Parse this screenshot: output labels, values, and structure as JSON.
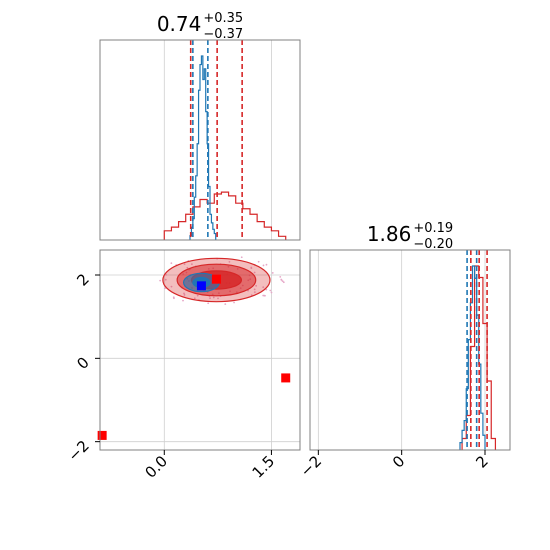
{
  "chart_data": [
    {
      "type": "histogram",
      "panel": "top-left marginal",
      "title": {
        "value": "0.74",
        "plus": "+0.35",
        "minus": "−0.37"
      },
      "xlim": [
        -0.9,
        1.9
      ],
      "grid": true,
      "series": [
        {
          "color": "#d62728",
          "edges": [
            0.0,
            0.1,
            0.2,
            0.3,
            0.4,
            0.5,
            0.6,
            0.7,
            0.8,
            0.9,
            1.0,
            1.1,
            1.2,
            1.3,
            1.4,
            1.5,
            1.6,
            1.7
          ],
          "counts": [
            0.05,
            0.07,
            0.1,
            0.14,
            0.18,
            0.22,
            0.2,
            0.25,
            0.26,
            0.24,
            0.2,
            0.17,
            0.14,
            0.1,
            0.07,
            0.05,
            0.02
          ],
          "quantile_lines": [
            0.37,
            0.74,
            1.09
          ]
        },
        {
          "color": "#1f77b4",
          "edges": [
            0.36,
            0.38,
            0.4,
            0.42,
            0.44,
            0.46,
            0.48,
            0.5,
            0.52,
            0.54,
            0.56,
            0.58,
            0.6,
            0.62,
            0.64,
            0.66,
            0.68,
            0.7,
            0.72
          ],
          "counts": [
            0.02,
            0.06,
            0.1,
            0.2,
            0.3,
            0.45,
            0.7,
            0.82,
            0.86,
            0.75,
            0.8,
            0.6,
            0.45,
            0.25,
            0.12,
            0.08,
            0.05,
            0.03
          ],
          "quantile_lines": [
            0.4,
            0.61
          ]
        }
      ]
    },
    {
      "type": "histogram",
      "panel": "bottom-right marginal",
      "title": {
        "value": "1.86",
        "plus": "+0.19",
        "minus": "−0.20"
      },
      "xlim": [
        -2.2,
        2.6
      ],
      "xticks": [
        "−2",
        "0",
        "2"
      ],
      "grid": true,
      "series": [
        {
          "color": "#d62728",
          "edges": [
            1.45,
            1.55,
            1.65,
            1.75,
            1.85,
            1.95,
            2.05,
            2.15,
            2.25
          ],
          "counts": [
            0.05,
            0.15,
            0.45,
            0.8,
            0.75,
            0.55,
            0.3,
            0.05
          ],
          "quantile_lines": [
            1.66,
            1.86,
            2.05
          ]
        },
        {
          "color": "#1f77b4",
          "edges": [
            1.4,
            1.45,
            1.5,
            1.55,
            1.6,
            1.65,
            1.7,
            1.75,
            1.8,
            1.85,
            1.9,
            1.95,
            2.0
          ],
          "counts": [
            0.03,
            0.08,
            0.12,
            0.25,
            0.45,
            0.6,
            0.75,
            0.7,
            0.55,
            0.35,
            0.15,
            0.06
          ],
          "quantile_lines": [
            1.57,
            1.8
          ]
        }
      ]
    },
    {
      "type": "contour",
      "panel": "bottom-left joint",
      "xlim": [
        -0.9,
        1.9
      ],
      "ylim": [
        -2.2,
        2.6
      ],
      "xticks": [
        "0.0",
        "1.5"
      ],
      "yticks": [
        "−2",
        "0",
        "2"
      ],
      "grid": true,
      "red_contours": [
        {
          "cx": 0.73,
          "cy": 1.88,
          "rx": 0.75,
          "ry": 0.52,
          "opacity": 0.3
        },
        {
          "cx": 0.73,
          "cy": 1.88,
          "rx": 0.55,
          "ry": 0.38,
          "opacity": 0.55
        },
        {
          "cx": 0.73,
          "cy": 1.88,
          "rx": 0.35,
          "ry": 0.22,
          "opacity": 0.85
        }
      ],
      "blue_contours": [
        {
          "cx": 0.52,
          "cy": 1.82,
          "rx": 0.25,
          "ry": 0.22,
          "opacity": 0.6
        },
        {
          "cx": 0.52,
          "cy": 1.82,
          "rx": 0.12,
          "ry": 0.12,
          "opacity": 0.95
        }
      ],
      "markers": [
        {
          "x": 0.73,
          "y": 1.9,
          "color": "#ff0000"
        },
        {
          "x": 0.52,
          "y": 1.74,
          "color": "#0000ff"
        },
        {
          "x": 1.7,
          "y": -0.47,
          "color": "#ff0000"
        },
        {
          "x": -0.87,
          "y": -1.85,
          "color": "#ff0000"
        }
      ]
    }
  ]
}
